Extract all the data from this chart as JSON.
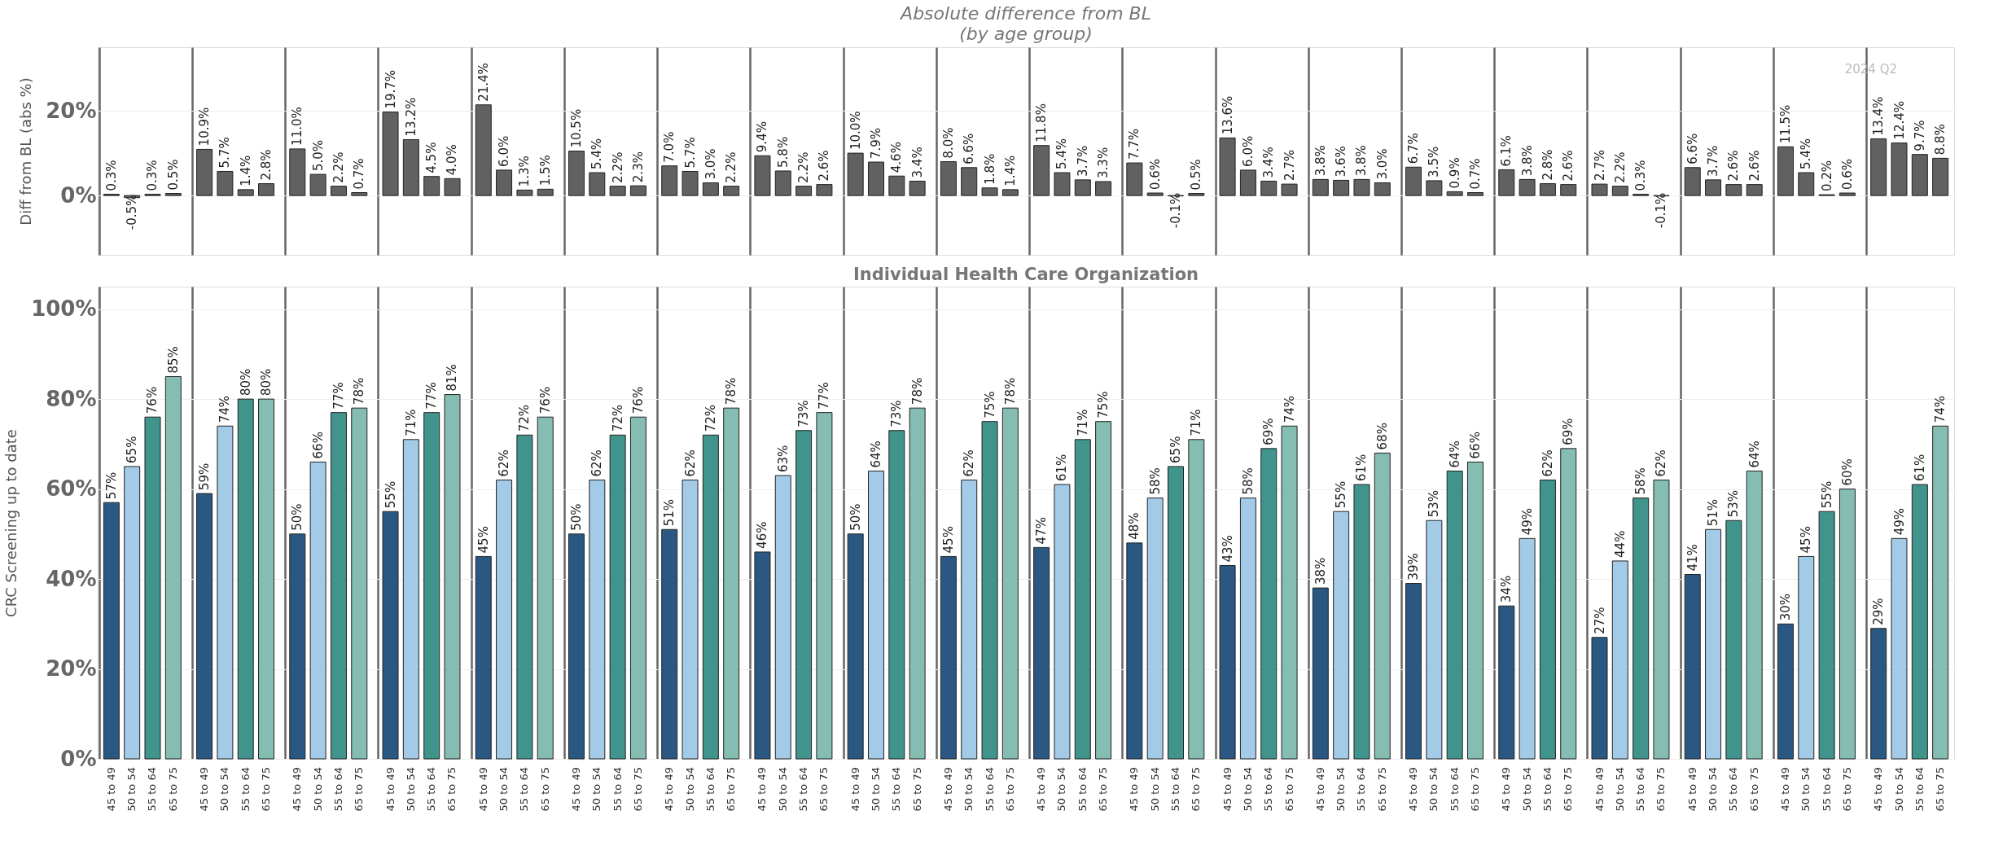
{
  "chart_data": [
    {
      "type": "bar",
      "title": "Absolute difference from BL",
      "subtitle": "(by age group)",
      "ylabel": "Diff from BL (abs %)",
      "annotations": [
        "2024 Q2"
      ],
      "categories": [
        null,
        null,
        null,
        null,
        null,
        null,
        null,
        null,
        null,
        null,
        null,
        null,
        null,
        null,
        null,
        null,
        null,
        null,
        null,
        null
      ],
      "ylim": [
        -14,
        35
      ],
      "yticks": [
        {
          "value": 0,
          "label": "0%"
        },
        {
          "value": 20,
          "label": "20%"
        }
      ],
      "grid": true,
      "tick_labels": "y",
      "series": [
        {
          "color": "#616161",
          "values": [
            0.3,
            10.9,
            11.0,
            19.7,
            21.4,
            10.5,
            7.0,
            9.4,
            10.0,
            8.0,
            11.8,
            7.7,
            13.6,
            3.8,
            6.7,
            6.1,
            2.7,
            6.6,
            11.5,
            13.4
          ],
          "value_labels": [
            "0.3%",
            "10.9%",
            "11.0%",
            "19.7%",
            "21.4%",
            "10.5%",
            "7.0%",
            "9.4%",
            "10.0%",
            "8.0%",
            "11.8%",
            "7.7%",
            "13.6%",
            "3.8%",
            "6.7%",
            "6.1%",
            "2.7%",
            "6.6%",
            "11.5%",
            "13.4%"
          ]
        },
        {
          "color": "#616161",
          "values": [
            -0.5,
            5.7,
            5.0,
            13.2,
            6.0,
            5.4,
            5.7,
            5.8,
            7.9,
            6.6,
            5.4,
            0.6,
            6.0,
            3.6,
            3.5,
            3.8,
            2.2,
            3.7,
            5.4,
            12.4
          ],
          "value_labels": [
            "-0.5%",
            "5.7%",
            "5.0%",
            "13.2%",
            "6.0%",
            "5.4%",
            "5.7%",
            "5.8%",
            "7.9%",
            "6.6%",
            "5.4%",
            "0.6%",
            "6.0%",
            "3.6%",
            "3.5%",
            "3.8%",
            "2.2%",
            "3.7%",
            "5.4%",
            "12.4%"
          ]
        },
        {
          "color": "#616161",
          "values": [
            0.3,
            1.4,
            2.2,
            4.5,
            1.3,
            2.2,
            3.0,
            2.2,
            4.6,
            1.8,
            3.7,
            -0.1,
            3.4,
            3.8,
            0.9,
            2.8,
            0.3,
            2.6,
            0.2,
            9.7
          ],
          "value_labels": [
            "0.3%",
            "1.4%",
            "2.2%",
            "4.5%",
            "1.3%",
            "2.2%",
            "3.0%",
            "2.2%",
            "4.6%",
            "1.8%",
            "3.7%",
            "-0.1%",
            "3.4%",
            "3.8%",
            "0.9%",
            "2.8%",
            "0.3%",
            "2.6%",
            "0.2%",
            "9.7%"
          ]
        },
        {
          "color": "#616161",
          "values": [
            0.5,
            2.8,
            0.7,
            4.0,
            1.5,
            2.3,
            2.2,
            2.6,
            3.4,
            1.4,
            3.3,
            0.5,
            2.7,
            3.0,
            0.7,
            2.6,
            -0.1,
            2.6,
            0.6,
            8.8
          ],
          "value_labels": [
            "0.5%",
            "2.8%",
            "0.7%",
            "4.0%",
            "1.5%",
            "2.3%",
            "2.2%",
            "2.6%",
            "3.4%",
            "1.4%",
            "3.3%",
            "0.5%",
            "2.7%",
            "3.0%",
            "0.7%",
            "2.6%",
            "-0.1%",
            "2.6%",
            "0.6%",
            "8.8%"
          ]
        }
      ]
    },
    {
      "type": "bar",
      "title": "Individual Health Care Organization",
      "ylabel": "CRC Screening up to date",
      "categories": [
        null,
        null,
        null,
        null,
        null,
        null,
        null,
        null,
        null,
        null,
        null,
        null,
        null,
        null,
        null,
        null,
        null,
        null,
        null,
        null
      ],
      "ylim": [
        0,
        105
      ],
      "yticks": [
        {
          "value": 0,
          "label": "0%"
        },
        {
          "value": 20,
          "label": "20%"
        },
        {
          "value": 40,
          "label": "40%"
        },
        {
          "value": 60,
          "label": "60%"
        },
        {
          "value": 80,
          "label": "80%"
        },
        {
          "value": 100,
          "label": "100%"
        }
      ],
      "grid": true,
      "series": [
        {
          "name": "45 to 49",
          "color": "#2b5783",
          "values": [
            57,
            59,
            50,
            55,
            45,
            50,
            51,
            46,
            50,
            45,
            47,
            48,
            43,
            38,
            39,
            34,
            27,
            41,
            30,
            29
          ],
          "value_labels": [
            "57%",
            "59%",
            "50%",
            "55%",
            "45%",
            "50%",
            "51%",
            "46%",
            "50%",
            "45%",
            "47%",
            "48%",
            "43%",
            "38%",
            "39%",
            "34%",
            "27%",
            "41%",
            "30%",
            "29%"
          ]
        },
        {
          "name": "50 to 54",
          "color": "#a3cbe8",
          "values": [
            65,
            74,
            66,
            71,
            62,
            62,
            62,
            63,
            64,
            62,
            61,
            58,
            58,
            55,
            53,
            49,
            44,
            51,
            45,
            49
          ],
          "value_labels": [
            "65%",
            "74%",
            "66%",
            "71%",
            "62%",
            "62%",
            "62%",
            "63%",
            "64%",
            "62%",
            "61%",
            "58%",
            "58%",
            "55%",
            "53%",
            "49%",
            "44%",
            "51%",
            "45%",
            "49%"
          ]
        },
        {
          "name": "55 to 64",
          "color": "#40948c",
          "values": [
            76,
            80,
            77,
            77,
            72,
            72,
            72,
            73,
            73,
            75,
            71,
            65,
            69,
            61,
            64,
            62,
            58,
            53,
            55,
            61
          ],
          "value_labels": [
            "76%",
            "80%",
            "77%",
            "77%",
            "72%",
            "72%",
            "72%",
            "73%",
            "73%",
            "75%",
            "71%",
            "65%",
            "69%",
            "61%",
            "64%",
            "62%",
            "58%",
            "53%",
            "55%",
            "61%"
          ]
        },
        {
          "name": "65 to 75",
          "color": "#85bdb3",
          "values": [
            85,
            80,
            78,
            81,
            76,
            76,
            78,
            77,
            78,
            78,
            75,
            71,
            74,
            68,
            66,
            69,
            62,
            64,
            60,
            74
          ],
          "value_labels": [
            "85%",
            "80%",
            "78%",
            "81%",
            "76%",
            "76%",
            "78%",
            "77%",
            "78%",
            "78%",
            "75%",
            "71%",
            "74%",
            "68%",
            "66%",
            "69%",
            "62%",
            "64%",
            "60%",
            "74%"
          ]
        }
      ]
    }
  ]
}
